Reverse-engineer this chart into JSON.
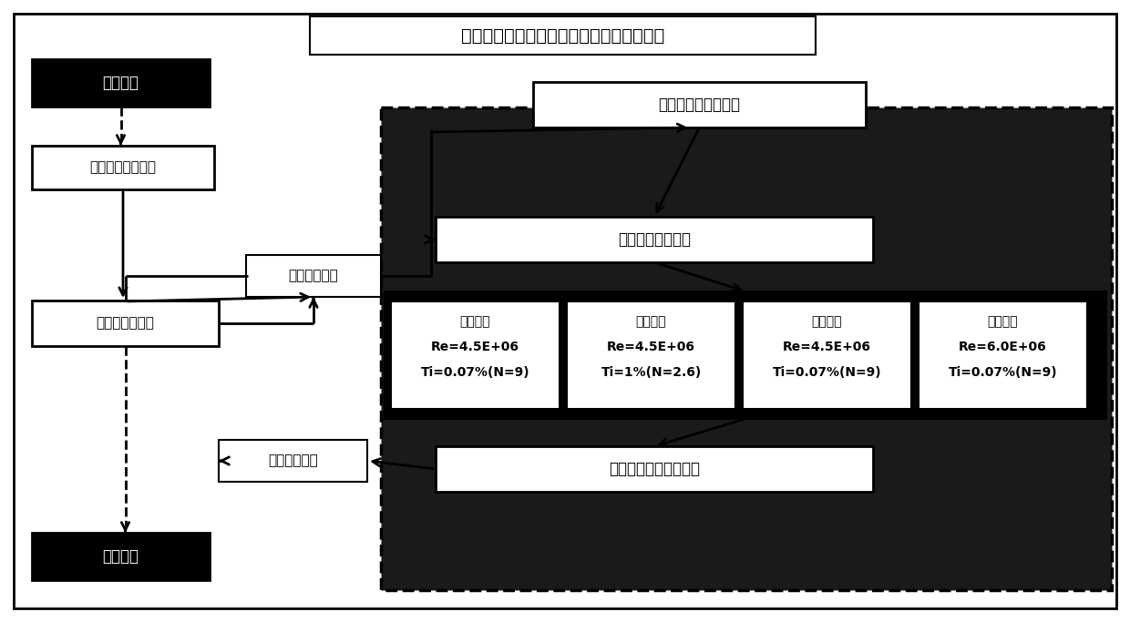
{
  "title": "考虑自由来流湍流影响的翼型优化设计方法",
  "box_math_model": "数学模型定义模块",
  "box_geom": "几何设计模块",
  "box_optim": "最优化算法模块",
  "box_aero_eval": "气动评估模块",
  "box_init_label": "初始翼型",
  "box_final_label": "最优翼型",
  "box_multi_case": "翼型多工况分析模块",
  "box_aero_calc": "气动性能并行计算",
  "box_aero_param": "翼型气动特性参数分析",
  "case1_line1": "自然转捩",
  "case1_line2": "Re=4.5E+06",
  "case1_line3": "Ti=0.07%(N=9)",
  "case2_line1": "自然转捩",
  "case2_line2": "Re=4.5E+06",
  "case2_line3": "Ti=1%(N=2.6)",
  "case3_line1": "固定转捩",
  "case3_line2": "Re=4.5E+06",
  "case3_line3": "Ti=0.07%(N=9)",
  "case4_line1": "自然转捩",
  "case4_line2": "Re=6.0E+06",
  "case4_line3": "Ti=0.07%(N=9)",
  "bg_color": "#ffffff",
  "right_panel_bg": "#1a1a1a",
  "black_fill": "#000000",
  "white_fill": "#ffffff"
}
